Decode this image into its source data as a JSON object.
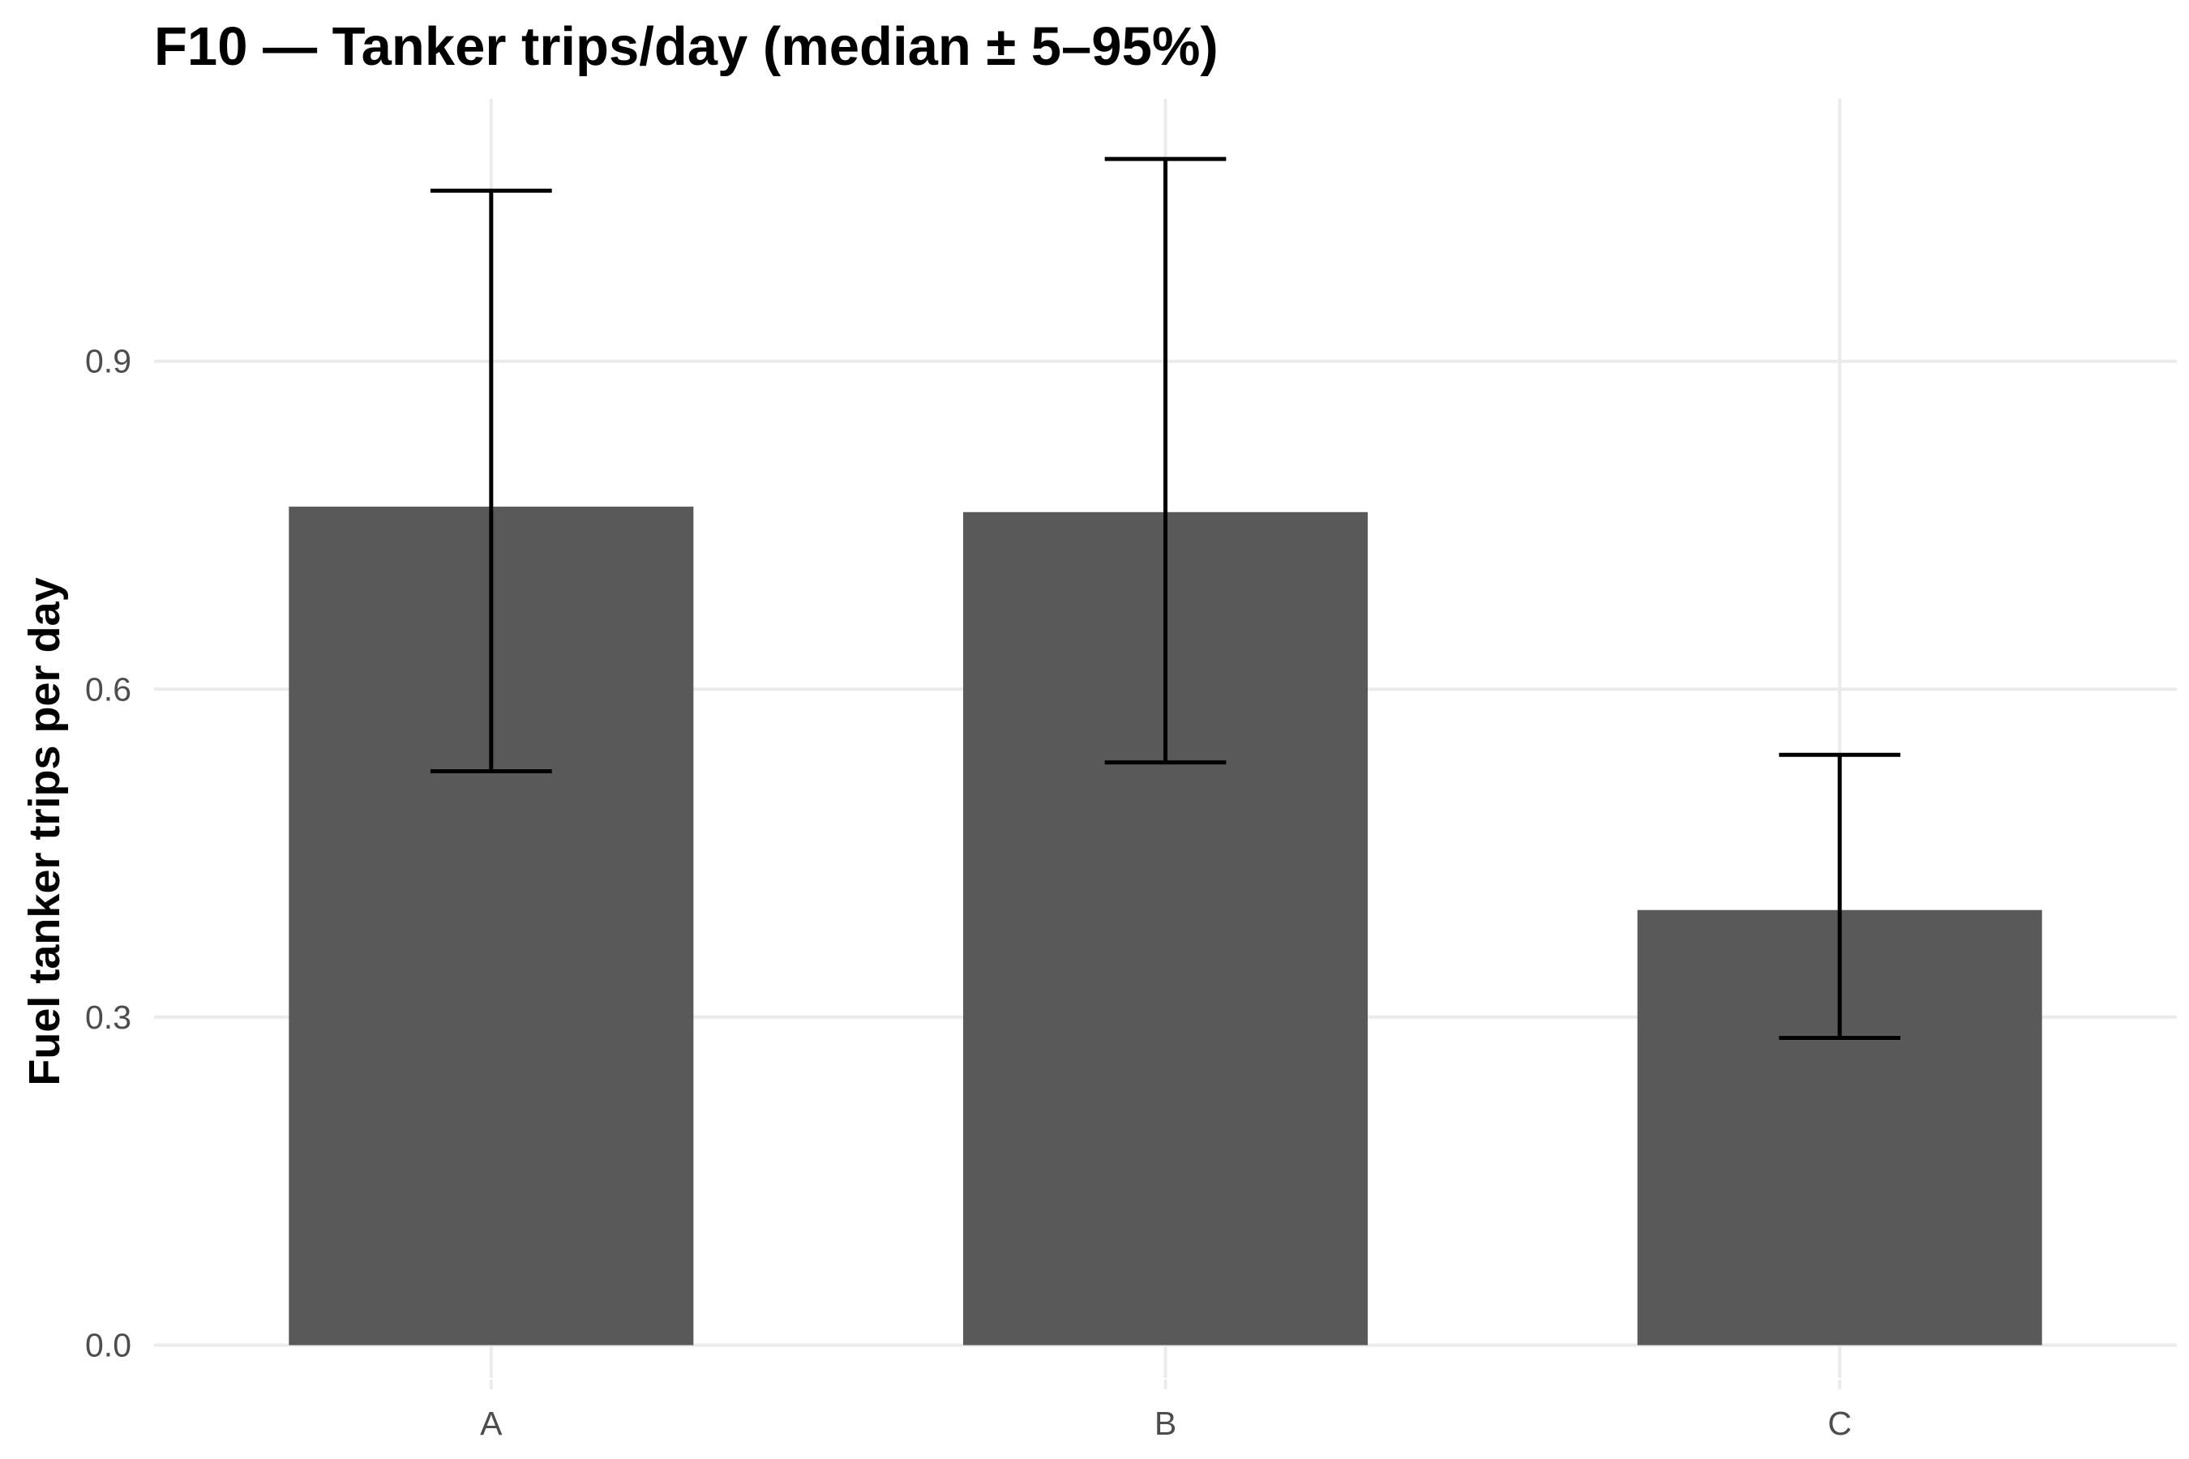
{
  "chart_data": {
    "type": "bar",
    "title": "F10 — Tanker trips/day (median ± 5–95%)",
    "xlabel": "",
    "ylabel": "Fuel tanker trips per day",
    "categories": [
      "A",
      "B",
      "C"
    ],
    "values": [
      0.767,
      0.762,
      0.398
    ],
    "error_low": [
      0.525,
      0.533,
      0.281
    ],
    "error_high": [
      1.056,
      1.085,
      0.54
    ],
    "yticks": [
      0.0,
      0.3,
      0.6,
      0.9
    ],
    "ytick_labels": [
      "0.0",
      "0.3",
      "0.6",
      "0.9"
    ],
    "ylim": [
      -0.03,
      1.14
    ],
    "grid": true,
    "legend": "none",
    "colors": {
      "bar": "#595959",
      "error_bar": "#000000",
      "grid": "#ebebeb",
      "tick_label": "#4d4d4d",
      "title": "#000000"
    }
  }
}
